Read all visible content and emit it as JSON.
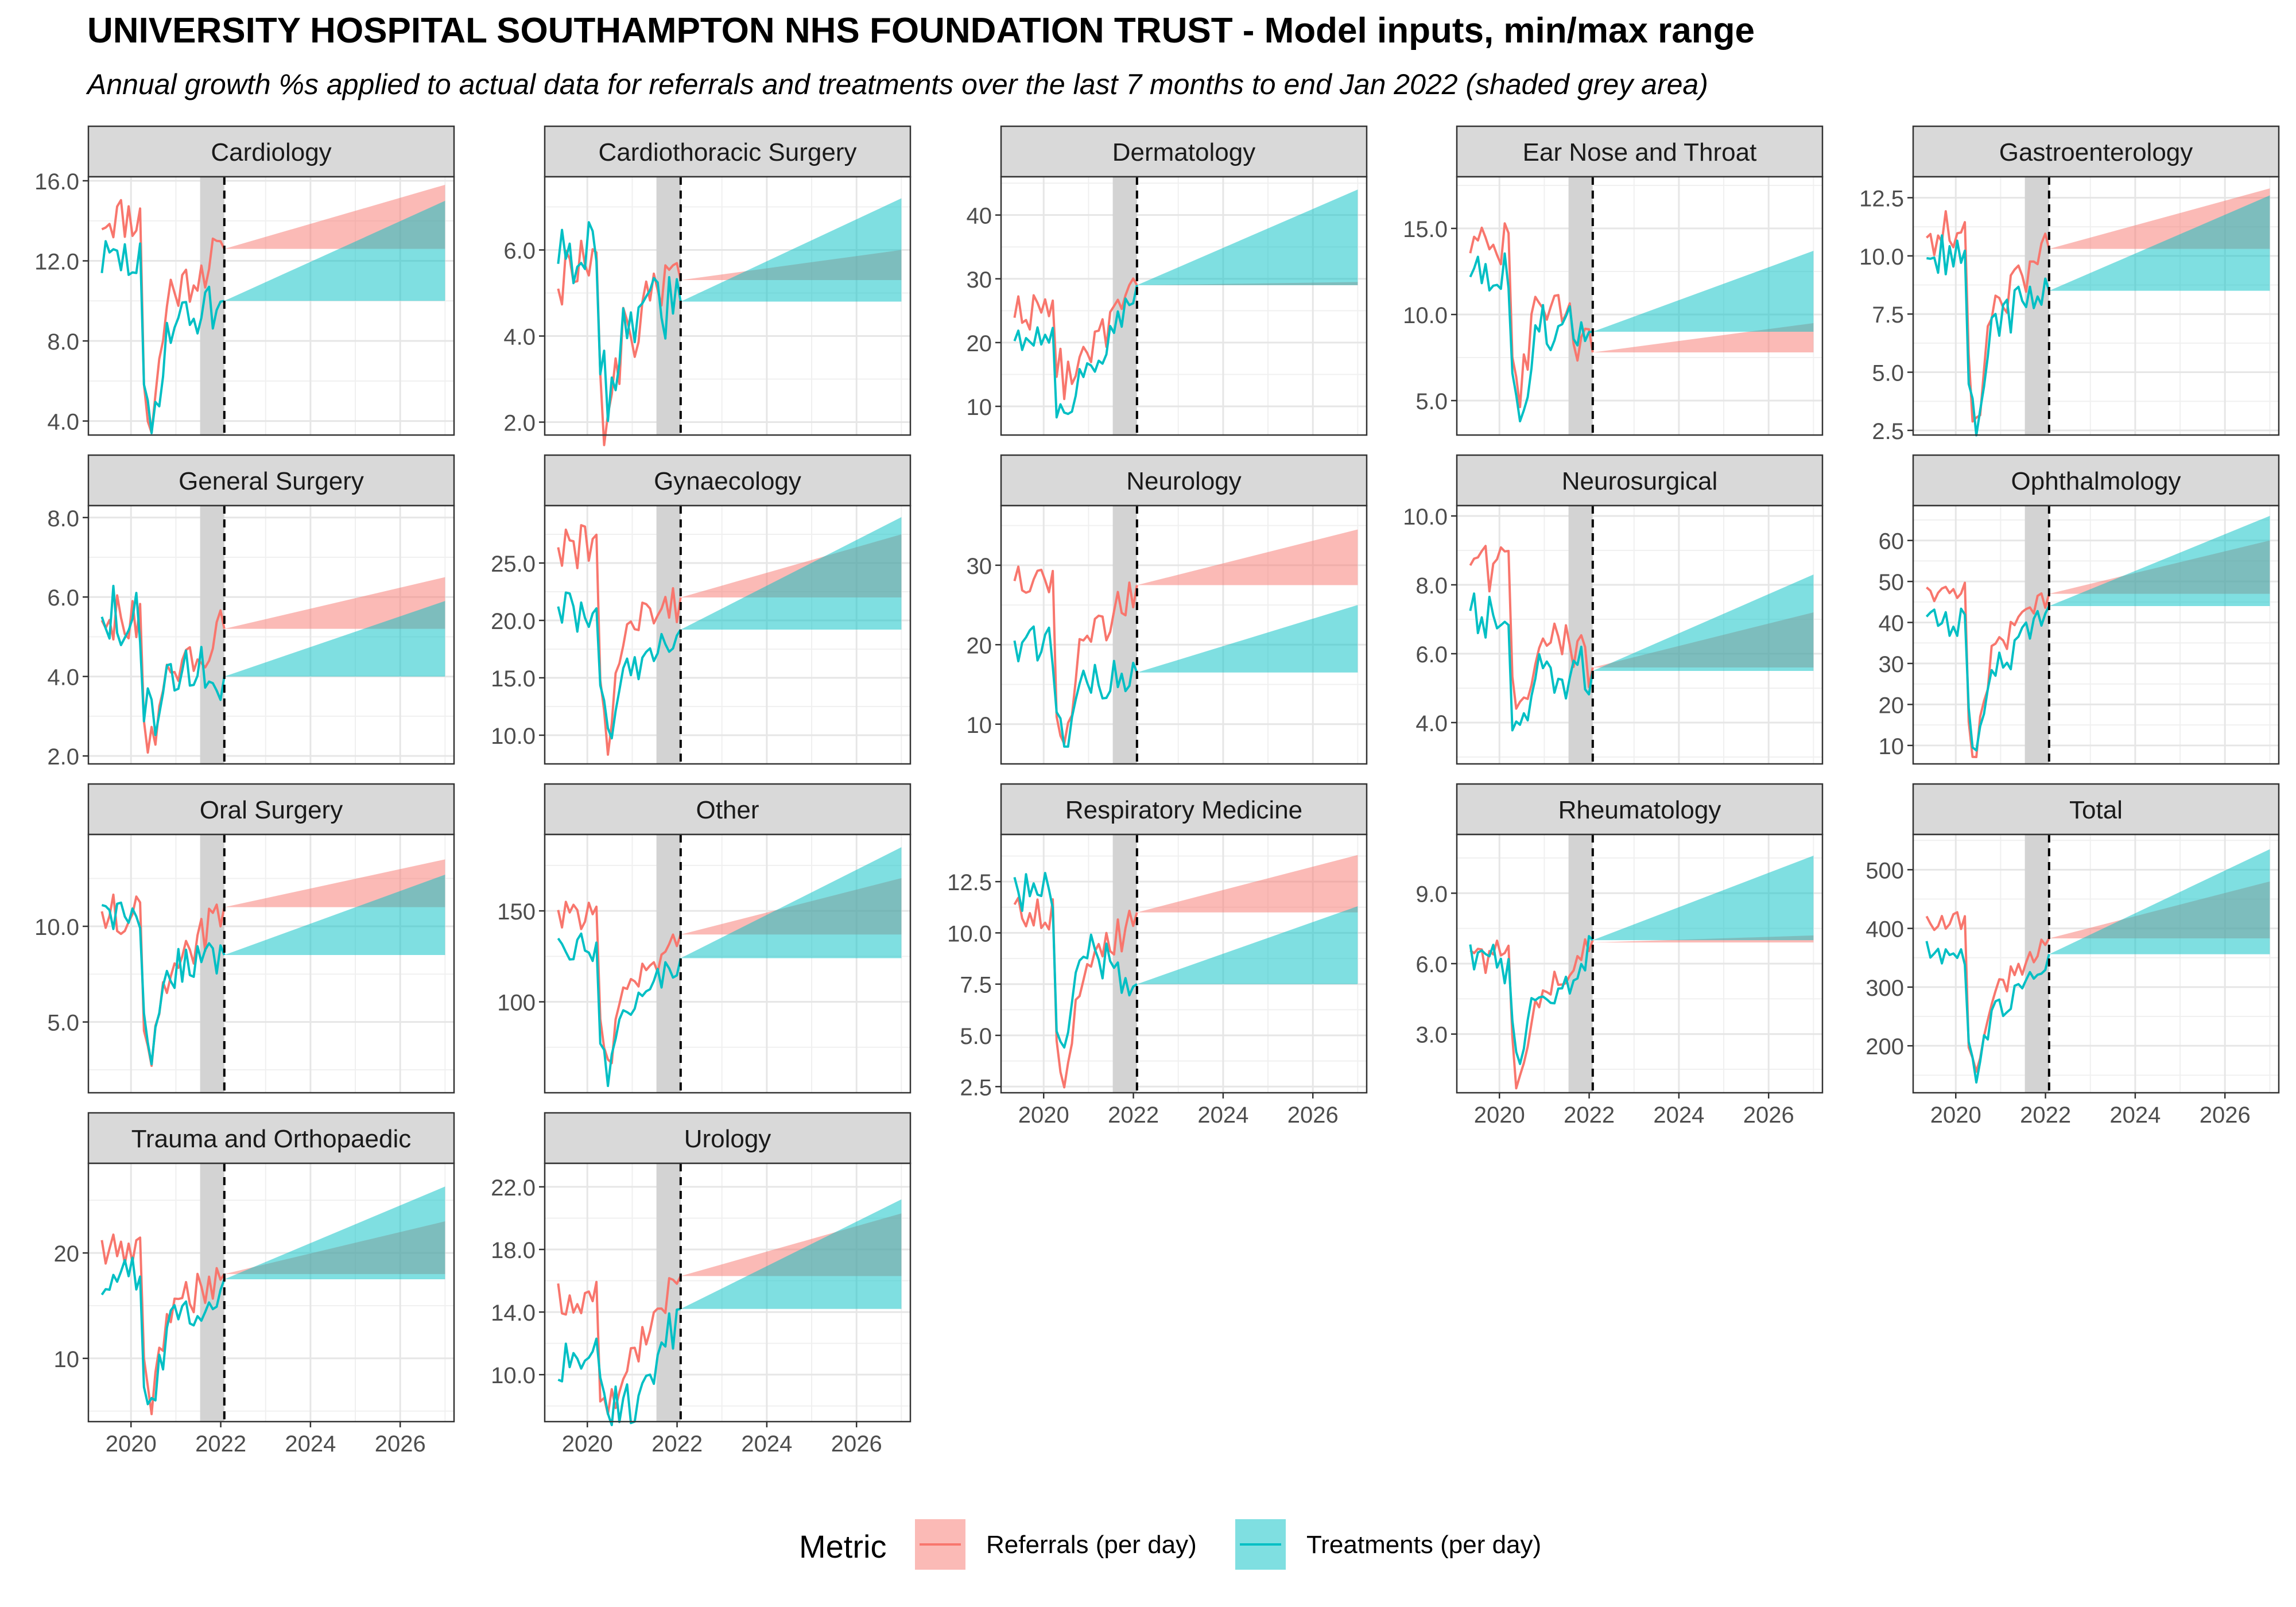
{
  "chart_data": {
    "type": "line",
    "title": "UNIVERSITY HOSPITAL SOUTHAMPTON NHS FOUNDATION TRUST - Model inputs, min/max range",
    "subtitle": "Annual growth %s applied to actual data for referrals and treatments over the last 7 months to end Jan 2022 (shaded grey area)",
    "xlabel": "",
    "ylabel": "",
    "grid": true,
    "facet_columns": 5,
    "x_ticks": [
      2020,
      2022,
      2024,
      2026
    ],
    "x_tick_labels": [
      "2020",
      "2022",
      "2024",
      "2026"
    ],
    "xlim": [
      2019.05,
      2027.2
    ],
    "shaded_window": [
      2021.54,
      2022.08
    ],
    "cutoff_date": 2022.08,
    "forecast_end": 2027.0,
    "legend": {
      "title": "Metric",
      "position": "bottom",
      "entries": [
        "Referrals (per day)",
        "Treatments (per day)"
      ]
    },
    "series_colors": {
      "Referrals (per day)": "#F8766D",
      "Treatments (per day)": "#00BFC4"
    },
    "panels": [
      {
        "name": "Cardiology",
        "ylim": [
          3.3,
          16.2
        ],
        "y_ticks": [
          4,
          8,
          12,
          16
        ],
        "y_tick_labels": [
          "4.0",
          "8.0",
          "12.0",
          "16.0"
        ],
        "referrals": {
          "start": 14.2,
          "dip": 3.6,
          "end": 12.6,
          "noise": 1.2,
          "range_min": 12.6,
          "range_max": 15.8
        },
        "treatments": {
          "start": 12.0,
          "dip": 3.3,
          "end": 10.0,
          "noise": 1.2,
          "range_min": 10.0,
          "range_max": 15.0
        }
      },
      {
        "name": "Cardiothoracic Surgery",
        "ylim": [
          1.7,
          7.7
        ],
        "y_ticks": [
          2,
          4,
          6
        ],
        "y_tick_labels": [
          "2.0",
          "4.0",
          "6.0"
        ],
        "referrals": {
          "start": 5.5,
          "dip": 1.8,
          "end": 5.3,
          "noise": 0.9,
          "range_min": 5.3,
          "range_max": 6.0
        },
        "treatments": {
          "start": 6.0,
          "dip": 2.5,
          "end": 4.8,
          "noise": 0.8,
          "range_min": 4.8,
          "range_max": 7.2
        }
      },
      {
        "name": "Dermatology",
        "ylim": [
          5.5,
          46
        ],
        "y_ticks": [
          10,
          20,
          30,
          40
        ],
        "y_tick_labels": [
          "10",
          "20",
          "30",
          "40"
        ],
        "referrals": {
          "start": 25,
          "dip": 14,
          "end": 29,
          "noise": 3,
          "range_min": 29,
          "range_max": 29.5
        },
        "treatments": {
          "start": 21,
          "dip": 7,
          "end": 29,
          "noise": 2.5,
          "range_min": 29,
          "range_max": 44
        }
      },
      {
        "name": "Ear Nose and Throat",
        "ylim": [
          3.0,
          18.0
        ],
        "y_ticks": [
          5,
          10,
          15
        ],
        "y_tick_labels": [
          "5.0",
          "10.0",
          "15.0"
        ],
        "referrals": {
          "start": 14,
          "dip": 5,
          "end": 7.8,
          "noise": 1.5,
          "range_min": 7.8,
          "range_max": 9.5
        },
        "treatments": {
          "start": 12.5,
          "dip": 3.5,
          "end": 9.0,
          "noise": 1.6,
          "range_min": 9.0,
          "range_max": 13.7
        }
      },
      {
        "name": "Gastroenterology",
        "ylim": [
          2.3,
          13.4
        ],
        "y_ticks": [
          2.5,
          5,
          7.5,
          10,
          12.5
        ],
        "y_tick_labels": [
          "2.5",
          "5.0",
          "7.5",
          "10.0",
          "12.5"
        ],
        "referrals": {
          "start": 11,
          "dip": 2.6,
          "end": 10.3,
          "noise": 1.0,
          "range_min": 10.3,
          "range_max": 12.9
        },
        "treatments": {
          "start": 10,
          "dip": 2.7,
          "end": 8.5,
          "noise": 1.0,
          "range_min": 8.5,
          "range_max": 12.6
        }
      },
      {
        "name": "General Surgery",
        "ylim": [
          1.8,
          8.3
        ],
        "y_ticks": [
          2,
          4,
          6,
          8
        ],
        "y_tick_labels": [
          "2.0",
          "4.0",
          "6.0",
          "8.0"
        ],
        "referrals": {
          "start": 5.5,
          "dip": 2.1,
          "end": 5.2,
          "noise": 0.6,
          "range_min": 5.2,
          "range_max": 6.5
        },
        "treatments": {
          "start": 5.5,
          "dip": 2.7,
          "end": 4.0,
          "noise": 0.8,
          "range_min": 4.0,
          "range_max": 5.9
        }
      },
      {
        "name": "Gynaecology",
        "ylim": [
          7.5,
          30
        ],
        "y_ticks": [
          10,
          15,
          20,
          25
        ],
        "y_tick_labels": [
          "10.0",
          "15.0",
          "20.0",
          "25.0"
        ],
        "referrals": {
          "start": 26.5,
          "dip": 8.8,
          "end": 22.0,
          "noise": 2.0,
          "range_min": 22.0,
          "range_max": 27.5
        },
        "treatments": {
          "start": 21,
          "dip": 10,
          "end": 19.2,
          "noise": 2.0,
          "range_min": 19.2,
          "range_max": 29.0
        }
      },
      {
        "name": "Neurology",
        "ylim": [
          5.0,
          37.5
        ],
        "y_ticks": [
          10,
          20,
          30
        ],
        "y_tick_labels": [
          "10",
          "20",
          "30"
        ],
        "referrals": {
          "start": 28,
          "dip": 6.5,
          "end": 27.5,
          "noise": 2.5,
          "range_min": 27.5,
          "range_max": 34.5
        },
        "treatments": {
          "start": 20,
          "dip": 8.0,
          "end": 16.5,
          "noise": 2.5,
          "range_min": 16.5,
          "range_max": 25.0
        }
      },
      {
        "name": "Neurosurgical",
        "ylim": [
          2.8,
          10.3
        ],
        "y_ticks": [
          4,
          6,
          8,
          10
        ],
        "y_tick_labels": [
          "4.0",
          "6.0",
          "8.0",
          "10.0"
        ],
        "referrals": {
          "start": 8.5,
          "dip": 3.8,
          "end": 5.6,
          "noise": 0.8,
          "range_min": 5.6,
          "range_max": 7.2
        },
        "treatments": {
          "start": 7.0,
          "dip": 3.1,
          "end": 5.5,
          "noise": 0.8,
          "range_min": 5.5,
          "range_max": 8.3
        }
      },
      {
        "name": "Ophthalmology",
        "ylim": [
          5.5,
          68.5
        ],
        "y_ticks": [
          10,
          20,
          30,
          40,
          50,
          60
        ],
        "y_tick_labels": [
          "10",
          "20",
          "30",
          "40",
          "50",
          "60"
        ],
        "referrals": {
          "start": 48,
          "dip": 8,
          "end": 47,
          "noise": 3.5,
          "range_min": 47,
          "range_max": 60
        },
        "treatments": {
          "start": 40,
          "dip": 7,
          "end": 44,
          "noise": 3.5,
          "range_min": 44,
          "range_max": 66
        }
      },
      {
        "name": "Oral Surgery",
        "ylim": [
          1.3,
          14.8
        ],
        "y_ticks": [
          5,
          10
        ],
        "y_tick_labels": [
          "5.0",
          "10.0"
        ],
        "referrals": {
          "start": 10.5,
          "dip": 2.3,
          "end": 11.0,
          "noise": 1.2,
          "range_min": 11.0,
          "range_max": 13.5
        },
        "treatments": {
          "start": 10.5,
          "dip": 3.0,
          "end": 8.5,
          "noise": 1.2,
          "range_min": 8.5,
          "range_max": 12.7
        }
      },
      {
        "name": "Other",
        "ylim": [
          50,
          192
        ],
        "y_ticks": [
          100,
          150
        ],
        "y_tick_labels": [
          "100",
          "150"
        ],
        "referrals": {
          "start": 148,
          "dip": 60,
          "end": 137,
          "noise": 8,
          "range_min": 137,
          "range_max": 168
        },
        "treatments": {
          "start": 130,
          "dip": 60,
          "end": 124,
          "noise": 8,
          "range_min": 124,
          "range_max": 185
        }
      },
      {
        "name": "Respiratory Medicine",
        "ylim": [
          2.2,
          14.8
        ],
        "y_ticks": [
          2.5,
          5,
          7.5,
          10,
          12.5
        ],
        "y_tick_labels": [
          "2.5",
          "5.0",
          "7.5",
          "10.0",
          "12.5"
        ],
        "referrals": {
          "start": 11.0,
          "dip": 2.8,
          "end": 11.0,
          "noise": 1.0,
          "range_min": 11.0,
          "range_max": 13.8
        },
        "treatments": {
          "start": 12.0,
          "dip": 3.8,
          "end": 7.5,
          "noise": 1.0,
          "range_min": 7.5,
          "range_max": 11.3
        }
      },
      {
        "name": "Rheumatology",
        "ylim": [
          0.5,
          11.5
        ],
        "y_ticks": [
          3,
          6,
          9
        ],
        "y_tick_labels": [
          "3.0",
          "6.0",
          "9.0"
        ],
        "referrals": {
          "start": 6.2,
          "dip": 1.0,
          "end": 7.0,
          "noise": 0.8,
          "range_min": 6.9,
          "range_max": 7.2
        },
        "treatments": {
          "start": 6.0,
          "dip": 1.8,
          "end": 7.0,
          "noise": 1.0,
          "range_min": 7.0,
          "range_max": 10.6
        }
      },
      {
        "name": "Total",
        "ylim": [
          120,
          560
        ],
        "y_ticks": [
          200,
          300,
          400,
          500
        ],
        "y_tick_labels": [
          "200",
          "300",
          "400",
          "500"
        ],
        "referrals": {
          "start": 410,
          "dip": 135,
          "end": 383,
          "noise": 20,
          "range_min": 383,
          "range_max": 480
        },
        "treatments": {
          "start": 360,
          "dip": 150,
          "end": 356,
          "noise": 20,
          "range_min": 356,
          "range_max": 535
        }
      },
      {
        "name": "Trauma and Orthopaedic",
        "ylim": [
          4.0,
          28.5
        ],
        "y_ticks": [
          10,
          20
        ],
        "y_tick_labels": [
          "10",
          "20"
        ],
        "referrals": {
          "start": 20,
          "dip": 5.5,
          "end": 18.0,
          "noise": 2.0,
          "range_min": 18.0,
          "range_max": 23.0
        },
        "treatments": {
          "start": 18,
          "dip": 4.8,
          "end": 17.5,
          "noise": 2.0,
          "range_min": 17.5,
          "range_max": 26.3
        }
      },
      {
        "name": "Urology",
        "ylim": [
          7.0,
          23.5
        ],
        "y_ticks": [
          10,
          14,
          18,
          22
        ],
        "y_tick_labels": [
          "10.0",
          "14.0",
          "18.0",
          "22.0"
        ],
        "referrals": {
          "start": 15,
          "dip": 7.2,
          "end": 16.3,
          "noise": 1.2,
          "range_min": 16.3,
          "range_max": 20.3
        },
        "treatments": {
          "start": 11,
          "dip": 7.5,
          "end": 14.2,
          "noise": 1.5,
          "range_min": 14.2,
          "range_max": 21.2
        }
      }
    ]
  }
}
